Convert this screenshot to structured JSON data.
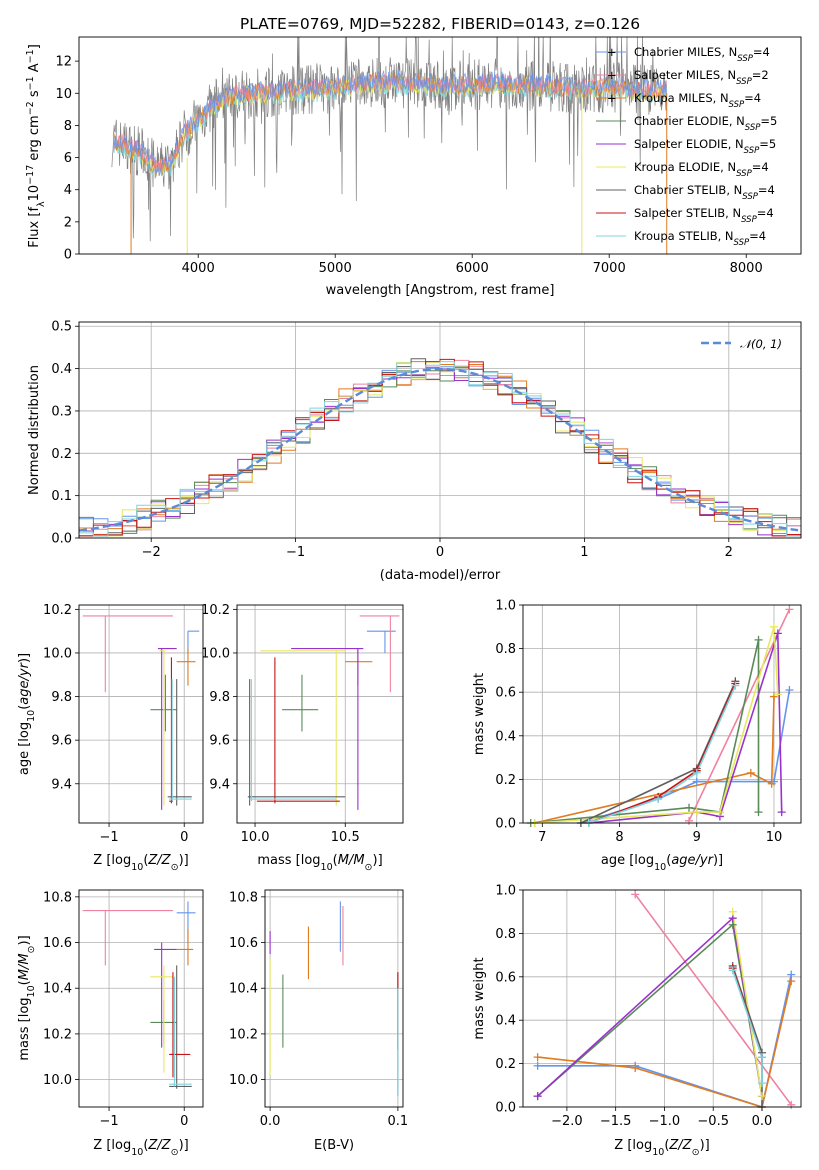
{
  "figure": {
    "title": "PLATE=0769, MJD=52282, FIBERID=0143, z=0.126"
  },
  "colors": {
    "Chabrier MILES": "#6495ed",
    "Salpeter MILES": "#ee82a0",
    "Kroupa MILES": "#e07b20",
    "Chabrier ELODIE": "#5a8a5a",
    "Salpeter ELODIE": "#9932cc",
    "Kroupa ELODIE": "#e8e860",
    "Chabrier STELIB": "#606060",
    "Salpeter STELIB": "#c81414",
    "Kroupa STELIB": "#7fd4e0"
  },
  "legend_spectrum": [
    {
      "label": "Chabrier MILES, N",
      "sub": "SSP",
      "tail": "=4"
    },
    {
      "label": "Salpeter MILES, N",
      "sub": "SSP",
      "tail": "=2"
    },
    {
      "label": "Kroupa MILES, N",
      "sub": "SSP",
      "tail": "=4"
    },
    {
      "label": "Chabrier ELODIE, N",
      "sub": "SSP",
      "tail": "=5"
    },
    {
      "label": "Salpeter ELODIE, N",
      "sub": "SSP",
      "tail": "=5"
    },
    {
      "label": "Kroupa ELODIE, N",
      "sub": "SSP",
      "tail": "=4"
    },
    {
      "label": "Chabrier STELIB, N",
      "sub": "SSP",
      "tail": "=4"
    },
    {
      "label": "Salpeter STELIB, N",
      "sub": "SSP",
      "tail": "=4"
    },
    {
      "label": "Kroupa STELIB, N",
      "sub": "SSP",
      "tail": "=4"
    }
  ],
  "legend_hist": {
    "label": "𝒩(0, 1)"
  },
  "chart_data": [
    {
      "id": "spectrum",
      "type": "line",
      "xlabel": "wavelength [Angstrom, rest frame]",
      "ylabel": "Flux [f_λ 10^-17 erg cm^-2 s^-1 A^-1]",
      "xlim": [
        3130,
        8400
      ],
      "ylim": [
        0,
        13.5
      ],
      "xticks": [
        4000,
        5000,
        6000,
        7000,
        8000
      ],
      "yticks": [
        0,
        2,
        4,
        6,
        8,
        10,
        12
      ],
      "xtick_labels": [
        "4000",
        "5000",
        "6000",
        "7000",
        "8000"
      ],
      "ytick_labels": [
        "0",
        "2",
        "4",
        "6",
        "8",
        "10",
        "12"
      ],
      "continuum_x": [
        3400,
        3600,
        3700,
        3800,
        3900,
        4000,
        4100,
        4200,
        4300,
        4400,
        4600,
        4800,
        5000,
        5200,
        5400,
        5600,
        5800,
        6000,
        6200,
        6400,
        6600,
        6800,
        7000,
        7200,
        7400
      ],
      "continuum_y": [
        7.0,
        6.2,
        5.3,
        5.6,
        7.5,
        8.3,
        9.2,
        9.8,
        9.9,
        10.0,
        10.1,
        10.2,
        10.3,
        10.6,
        10.7,
        10.6,
        10.4,
        10.5,
        10.6,
        10.5,
        10.4,
        10.3,
        10.4,
        10.2,
        10.2
      ]
    },
    {
      "id": "residual-histogram",
      "type": "line",
      "xlabel": "(data-model)/error",
      "ylabel": "Normed distribution",
      "xlim": [
        -2.5,
        2.5
      ],
      "ylim": [
        0,
        0.51
      ],
      "xticks": [
        -2,
        -1,
        0,
        1,
        2
      ],
      "xtick_labels": [
        "−2",
        "−1",
        "0",
        "1",
        "2"
      ],
      "yticks": [
        0,
        0.1,
        0.2,
        0.3,
        0.4,
        0.5
      ],
      "ytick_labels": [
        "0.0",
        "0.1",
        "0.2",
        "0.3",
        "0.4",
        "0.5"
      ],
      "gaussian": {
        "mean": 0,
        "sigma": 1,
        "name": "𝒩(0, 1)"
      }
    },
    {
      "id": "age-vs-Z",
      "type": "scatter",
      "xlabel": "Z [log10(Z/Z⊙)]",
      "ylabel": "age [log10(age/yr)]",
      "xlim": [
        -1.4,
        0.25
      ],
      "ylim": [
        9.22,
        10.22
      ],
      "xticks": [
        -1,
        0
      ],
      "xtick_labels": [
        "−1",
        "0"
      ],
      "yticks": [
        9.4,
        9.6,
        9.8,
        10.0,
        10.2
      ],
      "ytick_labels": [
        "9.4",
        "9.6",
        "9.8",
        "10.0",
        "10.2"
      ],
      "points": [
        {
          "model": "Chabrier MILES",
          "x": 0.05,
          "y": 10.1,
          "xe": [
            0.05,
            0.2
          ],
          "ye": [
            10.0,
            10.1
          ]
        },
        {
          "model": "Salpeter MILES",
          "x": -1.05,
          "y": 10.17,
          "xe": [
            -1.35,
            -0.15
          ],
          "ye": [
            9.82,
            10.17
          ]
        },
        {
          "model": "Kroupa MILES",
          "x": 0.05,
          "y": 9.96,
          "xe": [
            -0.1,
            0.15
          ],
          "ye": [
            9.85,
            10.02
          ]
        },
        {
          "model": "Chabrier ELODIE",
          "x": -0.25,
          "y": 9.74,
          "xe": [
            -0.45,
            -0.1
          ],
          "ye": [
            9.64,
            9.9
          ]
        },
        {
          "model": "Salpeter ELODIE",
          "x": -0.3,
          "y": 10.02,
          "xe": [
            -0.35,
            -0.1
          ],
          "ye": [
            9.28,
            10.02
          ]
        },
        {
          "model": "Kroupa ELODIE",
          "x": -0.27,
          "y": 10.01,
          "xe": [
            -0.33,
            -0.25
          ],
          "ye": [
            9.3,
            10.01
          ]
        },
        {
          "model": "Chabrier STELIB",
          "x": -0.1,
          "y": 9.34,
          "xe": [
            -0.22,
            0.1
          ],
          "ye": [
            9.3,
            9.88
          ]
        },
        {
          "model": "Salpeter STELIB",
          "x": -0.17,
          "y": 9.32,
          "xe": [
            -0.2,
            -0.15
          ],
          "ye": [
            9.31,
            9.98
          ]
        },
        {
          "model": "Kroupa STELIB",
          "x": -0.16,
          "y": 9.33,
          "xe": [
            -0.2,
            0.1
          ],
          "ye": [
            9.32,
            9.88
          ]
        }
      ]
    },
    {
      "id": "age-vs-mass",
      "type": "scatter",
      "xlabel": "mass [log10(M/M⊙)]",
      "ylabel": "",
      "xlim": [
        9.9,
        10.82
      ],
      "ylim": [
        9.22,
        10.22
      ],
      "xticks": [
        10.0,
        10.5
      ],
      "xtick_labels": [
        "10.0",
        "10.5"
      ],
      "yticks": [
        9.4,
        9.6,
        9.8,
        10.0,
        10.2
      ],
      "ytick_labels": [
        "9.4",
        "9.6",
        "9.8",
        "10.0",
        "10.2"
      ],
      "points": [
        {
          "model": "Chabrier MILES",
          "x": 10.72,
          "y": 10.1,
          "xe": [
            10.62,
            10.78
          ],
          "ye": [
            10.0,
            10.1
          ]
        },
        {
          "model": "Salpeter MILES",
          "x": 10.75,
          "y": 10.17,
          "xe": [
            10.58,
            10.8
          ],
          "ye": [
            9.82,
            10.17
          ]
        },
        {
          "model": "Kroupa MILES",
          "x": 10.57,
          "y": 9.96,
          "xe": [
            10.5,
            10.65
          ],
          "ye": [
            9.85,
            10.02
          ]
        },
        {
          "model": "Chabrier ELODIE",
          "x": 10.26,
          "y": 9.74,
          "xe": [
            10.15,
            10.35
          ],
          "ye": [
            9.64,
            9.9
          ]
        },
        {
          "model": "Salpeter ELODIE",
          "x": 10.57,
          "y": 10.02,
          "xe": [
            10.2,
            10.6
          ],
          "ye": [
            9.28,
            10.02
          ]
        },
        {
          "model": "Kroupa ELODIE",
          "x": 10.45,
          "y": 10.01,
          "xe": [
            10.03,
            10.5
          ],
          "ye": [
            9.3,
            10.01
          ]
        },
        {
          "model": "Chabrier STELIB",
          "x": 9.97,
          "y": 9.34,
          "xe": [
            9.96,
            10.5
          ],
          "ye": [
            9.3,
            9.88
          ]
        },
        {
          "model": "Salpeter STELIB",
          "x": 10.11,
          "y": 9.32,
          "xe": [
            10.01,
            10.47
          ],
          "ye": [
            9.31,
            9.98
          ]
        },
        {
          "model": "Kroupa STELIB",
          "x": 9.98,
          "y": 9.33,
          "xe": [
            9.97,
            10.45
          ],
          "ye": [
            9.32,
            9.88
          ]
        }
      ]
    },
    {
      "id": "mass-weight-vs-age",
      "type": "line",
      "xlabel": "age [log10(age/yr)]",
      "ylabel": "mass weight",
      "xlim": [
        6.75,
        10.35
      ],
      "ylim": [
        0,
        1.0
      ],
      "xticks": [
        7,
        8,
        9,
        10
      ],
      "xtick_labels": [
        "7",
        "8",
        "9",
        "10"
      ],
      "yticks": [
        0,
        0.2,
        0.4,
        0.6,
        0.8,
        1.0
      ],
      "ytick_labels": [
        "0.0",
        "0.2",
        "0.4",
        "0.6",
        "0.8",
        "1.0"
      ],
      "series": [
        {
          "model": "Chabrier MILES",
          "x": [
            7.5,
            8.5,
            9.0,
            10.0,
            10.2
          ],
          "y": [
            0.0,
            0.11,
            0.19,
            0.19,
            0.61
          ]
        },
        {
          "model": "Salpeter MILES",
          "x": [
            8.9,
            10.2
          ],
          "y": [
            0.01,
            0.98
          ]
        },
        {
          "model": "Kroupa MILES",
          "x": [
            6.9,
            9.7,
            9.97,
            10.0
          ],
          "y": [
            0.0,
            0.23,
            0.18,
            0.58
          ]
        },
        {
          "model": "Chabrier ELODIE",
          "x": [
            6.85,
            8.9,
            9.3,
            9.8,
            9.8
          ],
          "y": [
            0.0,
            0.07,
            0.05,
            0.84,
            0.05
          ]
        },
        {
          "model": "Salpeter ELODIE",
          "x": [
            7.6,
            9.0,
            9.3,
            10.05,
            10.1
          ],
          "y": [
            0.0,
            0.05,
            0.03,
            0.87,
            0.05
          ]
        },
        {
          "model": "Kroupa ELODIE",
          "x": [
            6.9,
            9.0,
            9.3,
            10.0,
            10.05
          ],
          "y": [
            0.0,
            0.05,
            0.05,
            0.9,
            0.59
          ]
        },
        {
          "model": "Chabrier STELIB",
          "x": [
            7.5,
            9.0,
            9.5
          ],
          "y": [
            0.0,
            0.25,
            0.65
          ]
        },
        {
          "model": "Salpeter STELIB",
          "x": [
            7.6,
            8.5,
            9.0,
            9.5
          ],
          "y": [
            0.0,
            0.12,
            0.24,
            0.64
          ]
        },
        {
          "model": "Kroupa STELIB",
          "x": [
            7.6,
            8.5,
            9.0,
            9.5
          ],
          "y": [
            0.0,
            0.11,
            0.23,
            0.63
          ]
        }
      ]
    },
    {
      "id": "mass-vs-Z",
      "type": "scatter",
      "xlabel": "Z [log10(Z/Z⊙)]",
      "ylabel": "mass [log10(M/M⊙)]",
      "xlim": [
        -1.4,
        0.25
      ],
      "ylim": [
        9.88,
        10.83
      ],
      "xticks": [
        -1,
        0
      ],
      "xtick_labels": [
        "−1",
        "0"
      ],
      "yticks": [
        10.0,
        10.2,
        10.4,
        10.6,
        10.8
      ],
      "ytick_labels": [
        "10.0",
        "10.2",
        "10.4",
        "10.6",
        "10.8"
      ],
      "points": [
        {
          "model": "Chabrier MILES",
          "x": 0.05,
          "y": 10.73,
          "xe": [
            -0.1,
            0.15
          ],
          "ye": [
            10.6,
            10.78
          ]
        },
        {
          "model": "Salpeter MILES",
          "x": -1.05,
          "y": 10.74,
          "xe": [
            -1.35,
            -0.15
          ],
          "ye": [
            10.5,
            10.74
          ]
        },
        {
          "model": "Kroupa MILES",
          "x": 0.05,
          "y": 10.57,
          "xe": [
            -0.1,
            0.12
          ],
          "ye": [
            10.5,
            10.66
          ]
        },
        {
          "model": "Chabrier ELODIE",
          "x": -0.27,
          "y": 10.25,
          "xe": [
            -0.45,
            -0.1
          ],
          "ye": [
            10.15,
            10.35
          ]
        },
        {
          "model": "Salpeter ELODIE",
          "x": -0.3,
          "y": 10.57,
          "xe": [
            -0.4,
            -0.1
          ],
          "ye": [
            10.14,
            10.6
          ]
        },
        {
          "model": "Kroupa ELODIE",
          "x": -0.27,
          "y": 10.45,
          "xe": [
            -0.45,
            -0.15
          ],
          "ye": [
            10.03,
            10.5
          ]
        },
        {
          "model": "Chabrier STELIB",
          "x": -0.1,
          "y": 9.97,
          "xe": [
            -0.2,
            0.1
          ],
          "ye": [
            9.96,
            10.5
          ]
        },
        {
          "model": "Salpeter STELIB",
          "x": -0.15,
          "y": 10.11,
          "xe": [
            -0.2,
            0.08
          ],
          "ye": [
            10.01,
            10.47
          ]
        },
        {
          "model": "Kroupa STELIB",
          "x": -0.13,
          "y": 9.98,
          "xe": [
            -0.2,
            0.1
          ],
          "ye": [
            9.97,
            10.45
          ]
        }
      ]
    },
    {
      "id": "mass-vs-EBV",
      "type": "scatter",
      "xlabel": "E(B-V)",
      "ylabel": "",
      "xlim": [
        -0.004,
        0.104
      ],
      "ylim": [
        9.88,
        10.83
      ],
      "xticks": [
        0.0,
        0.1
      ],
      "xtick_labels": [
        "0.0",
        "0.1"
      ],
      "yticks": [
        10.0,
        10.2,
        10.4,
        10.6,
        10.8
      ],
      "ytick_labels": [
        "10.0",
        "10.2",
        "10.4",
        "10.6",
        "10.8"
      ],
      "points": [
        {
          "model": "Chabrier MILES",
          "x": 0.055,
          "y": 10.68,
          "ye": [
            10.56,
            10.78
          ]
        },
        {
          "model": "Salpeter MILES",
          "x": 0.057,
          "y": 10.63,
          "ye": [
            10.5,
            10.76
          ]
        },
        {
          "model": "Kroupa MILES",
          "x": 0.03,
          "y": 10.55,
          "ye": [
            10.44,
            10.67
          ]
        },
        {
          "model": "Chabrier ELODIE",
          "x": 0.01,
          "y": 10.3,
          "ye": [
            10.14,
            10.46
          ]
        },
        {
          "model": "Salpeter ELODIE",
          "x": 0.0,
          "y": 10.6,
          "ye": [
            10.55,
            10.65
          ]
        },
        {
          "model": "Kroupa ELODIE",
          "x": 0.0,
          "y": 10.3,
          "ye": [
            10.02,
            10.53
          ]
        },
        {
          "model": "Chabrier STELIB",
          "x": 0.1,
          "y": 10.2,
          "ye": [
            9.93,
            10.47
          ]
        },
        {
          "model": "Salpeter STELIB",
          "x": 0.1,
          "y": 10.3,
          "ye": [
            10.13,
            10.47
          ]
        },
        {
          "model": "Kroupa STELIB",
          "x": 0.1,
          "y": 10.18,
          "ye": [
            9.93,
            10.4
          ]
        }
      ]
    },
    {
      "id": "mass-weight-vs-Z",
      "type": "line",
      "xlabel": "Z [log10(Z/Z⊙)]",
      "ylabel": "mass weight",
      "xlim": [
        -2.45,
        0.4
      ],
      "ylim": [
        0,
        1.0
      ],
      "xticks": [
        -2.0,
        -1.5,
        -1.0,
        -0.5,
        0.0
      ],
      "xtick_labels": [
        "−2.0",
        "−1.5",
        "−1.0",
        "−0.5",
        "0.0"
      ],
      "yticks": [
        0,
        0.2,
        0.4,
        0.6,
        0.8,
        1.0
      ],
      "ytick_labels": [
        "0.0",
        "0.2",
        "0.4",
        "0.6",
        "0.8",
        "1.0"
      ],
      "series": [
        {
          "model": "Chabrier MILES",
          "x": [
            -2.3,
            -1.3,
            0.0,
            0.3
          ],
          "y": [
            0.19,
            0.19,
            0.0,
            0.61
          ]
        },
        {
          "model": "Salpeter MILES",
          "x": [
            -1.3,
            0.3
          ],
          "y": [
            0.98,
            0.01
          ]
        },
        {
          "model": "Kroupa MILES",
          "x": [
            -2.3,
            -1.3,
            0.0,
            0.3
          ],
          "y": [
            0.23,
            0.18,
            0.0,
            0.58
          ]
        },
        {
          "model": "Chabrier ELODIE",
          "x": [
            -2.3,
            -0.3,
            0.0
          ],
          "y": [
            0.05,
            0.84,
            0.05
          ]
        },
        {
          "model": "Salpeter ELODIE",
          "x": [
            -2.3,
            -0.3,
            0.0
          ],
          "y": [
            0.05,
            0.87,
            0.05
          ]
        },
        {
          "model": "Kroupa ELODIE",
          "x": [
            -0.3,
            0.0
          ],
          "y": [
            0.9,
            0.05
          ]
        },
        {
          "model": "Chabrier STELIB",
          "x": [
            -0.3,
            0.0,
            0.0
          ],
          "y": [
            0.65,
            0.25,
            0.0
          ]
        },
        {
          "model": "Salpeter STELIB",
          "x": [
            -0.3,
            0.0
          ],
          "y": [
            0.64,
            0.23
          ]
        },
        {
          "model": "Kroupa STELIB",
          "x": [
            -0.3,
            0.0,
            0.0
          ],
          "y": [
            0.63,
            0.23,
            0.11
          ]
        }
      ]
    }
  ]
}
